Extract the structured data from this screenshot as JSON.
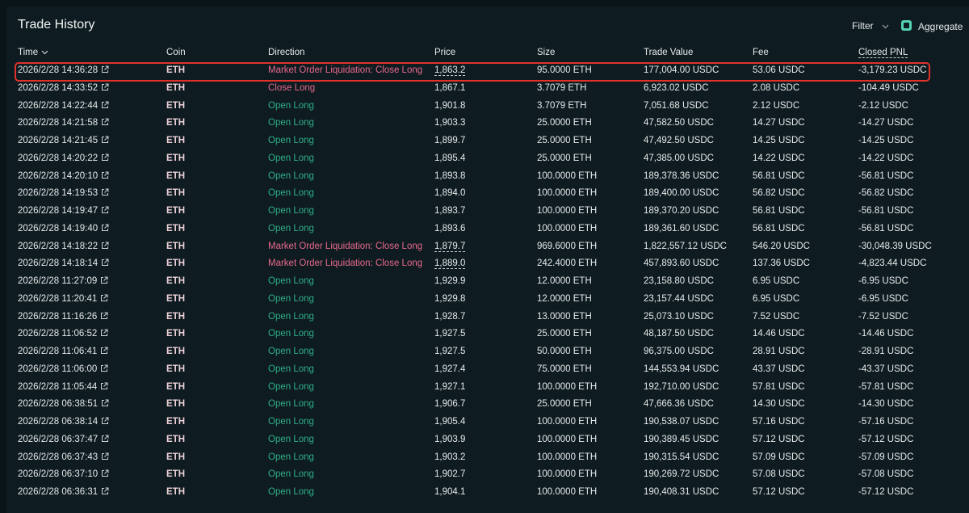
{
  "header": {
    "title": "Trade History",
    "filter": "Filter",
    "aggregate": "Aggregate"
  },
  "table": {
    "columns": [
      "Time",
      "Coin",
      "Direction",
      "Price",
      "Size",
      "Trade Value",
      "Fee",
      "Closed PNL"
    ],
    "rows": [
      [
        "2026/2/28 14:36:28",
        "ETH",
        "Market Order Liquidation: Close Long",
        "1,863.2",
        "95.0000 ETH",
        "177,004.00 USDC",
        "53.06 USDC",
        "-3,179.23 USDC"
      ],
      [
        "2026/2/28 14:33:52",
        "ETH",
        "Close Long",
        "1,867.1",
        "3.7079 ETH",
        "6,923.02 USDC",
        "2.08 USDC",
        "-104.49 USDC"
      ],
      [
        "2026/2/28 14:22:44",
        "ETH",
        "Open Long",
        "1,901.8",
        "3.7079 ETH",
        "7,051.68 USDC",
        "2.12 USDC",
        "-2.12 USDC"
      ],
      [
        "2026/2/28 14:21:58",
        "ETH",
        "Open Long",
        "1,903.3",
        "25.0000 ETH",
        "47,582.50 USDC",
        "14.27 USDC",
        "-14.27 USDC"
      ],
      [
        "2026/2/28 14:21:45",
        "ETH",
        "Open Long",
        "1,899.7",
        "25.0000 ETH",
        "47,492.50 USDC",
        "14.25 USDC",
        "-14.25 USDC"
      ],
      [
        "2026/2/28 14:20:22",
        "ETH",
        "Open Long",
        "1,895.4",
        "25.0000 ETH",
        "47,385.00 USDC",
        "14.22 USDC",
        "-14.22 USDC"
      ],
      [
        "2026/2/28 14:20:10",
        "ETH",
        "Open Long",
        "1,893.8",
        "100.0000 ETH",
        "189,378.36 USDC",
        "56.81 USDC",
        "-56.81 USDC"
      ],
      [
        "2026/2/28 14:19:53",
        "ETH",
        "Open Long",
        "1,894.0",
        "100.0000 ETH",
        "189,400.00 USDC",
        "56.82 USDC",
        "-56.82 USDC"
      ],
      [
        "2026/2/28 14:19:47",
        "ETH",
        "Open Long",
        "1,893.7",
        "100.0000 ETH",
        "189,370.20 USDC",
        "56.81 USDC",
        "-56.81 USDC"
      ],
      [
        "2026/2/28 14:19:40",
        "ETH",
        "Open Long",
        "1,893.6",
        "100.0000 ETH",
        "189,361.60 USDC",
        "56.81 USDC",
        "-56.81 USDC"
      ],
      [
        "2026/2/28 14:18:22",
        "ETH",
        "Market Order Liquidation: Close Long",
        "1,879.7",
        "969.6000 ETH",
        "1,822,557.12 USDC",
        "546.20 USDC",
        "-30,048.39 USDC"
      ],
      [
        "2026/2/28 14:18:14",
        "ETH",
        "Market Order Liquidation: Close Long",
        "1,889.0",
        "242.4000 ETH",
        "457,893.60 USDC",
        "137.36 USDC",
        "-4,823.44 USDC"
      ],
      [
        "2026/2/28 11:27:09",
        "ETH",
        "Open Long",
        "1,929.9",
        "12.0000 ETH",
        "23,158.80 USDC",
        "6.95 USDC",
        "-6.95 USDC"
      ],
      [
        "2026/2/28 11:20:41",
        "ETH",
        "Open Long",
        "1,929.8",
        "12.0000 ETH",
        "23,157.44 USDC",
        "6.95 USDC",
        "-6.95 USDC"
      ],
      [
        "2026/2/28 11:16:26",
        "ETH",
        "Open Long",
        "1,928.7",
        "13.0000 ETH",
        "25,073.10 USDC",
        "7.52 USDC",
        "-7.52 USDC"
      ],
      [
        "2026/2/28 11:06:52",
        "ETH",
        "Open Long",
        "1,927.5",
        "25.0000 ETH",
        "48,187.50 USDC",
        "14.46 USDC",
        "-14.46 USDC"
      ],
      [
        "2026/2/28 11:06:41",
        "ETH",
        "Open Long",
        "1,927.5",
        "50.0000 ETH",
        "96,375.00 USDC",
        "28.91 USDC",
        "-28.91 USDC"
      ],
      [
        "2026/2/28 11:06:00",
        "ETH",
        "Open Long",
        "1,927.4",
        "75.0000 ETH",
        "144,553.94 USDC",
        "43.37 USDC",
        "-43.37 USDC"
      ],
      [
        "2026/2/28 11:05:44",
        "ETH",
        "Open Long",
        "1,927.1",
        "100.0000 ETH",
        "192,710.00 USDC",
        "57.81 USDC",
        "-57.81 USDC"
      ],
      [
        "2026/2/28 06:38:51",
        "ETH",
        "Open Long",
        "1,906.7",
        "25.0000 ETH",
        "47,666.36 USDC",
        "14.30 USDC",
        "-14.30 USDC"
      ],
      [
        "2026/2/28 06:38:14",
        "ETH",
        "Open Long",
        "1,905.4",
        "100.0000 ETH",
        "190,538.07 USDC",
        "57.16 USDC",
        "-57.16 USDC"
      ],
      [
        "2026/2/28 06:37:47",
        "ETH",
        "Open Long",
        "1,903.9",
        "100.0000 ETH",
        "190,389.45 USDC",
        "57.12 USDC",
        "-57.12 USDC"
      ],
      [
        "2026/2/28 06:37:43",
        "ETH",
        "Open Long",
        "1,903.2",
        "100.0000 ETH",
        "190,315.54 USDC",
        "57.09 USDC",
        "-57.09 USDC"
      ],
      [
        "2026/2/28 06:37:10",
        "ETH",
        "Open Long",
        "1,902.7",
        "100.0000 ETH",
        "190,269.72 USDC",
        "57.08 USDC",
        "-57.08 USDC"
      ],
      [
        "2026/2/28 06:36:31",
        "ETH",
        "Open Long",
        "1,904.1",
        "100.0000 ETH",
        "190,408.31 USDC",
        "57.12 USDC",
        "-57.12 USDC"
      ]
    ],
    "direction_colors": [
      "#e8688a",
      "#e8688a",
      "#2fae87",
      "#2fae87",
      "#2fae87",
      "#2fae87",
      "#2fae87",
      "#2fae87",
      "#2fae87",
      "#2fae87",
      "#e8688a",
      "#e8688a",
      "#2fae87",
      "#2fae87",
      "#2fae87",
      "#2fae87",
      "#2fae87",
      "#2fae87",
      "#2fae87",
      "#2fae87",
      "#2fae87",
      "#2fae87",
      "#2fae87",
      "#2fae87",
      "#2fae87"
    ],
    "price_underlined": [
      0,
      10,
      11
    ],
    "highlighted_row": 0
  }
}
